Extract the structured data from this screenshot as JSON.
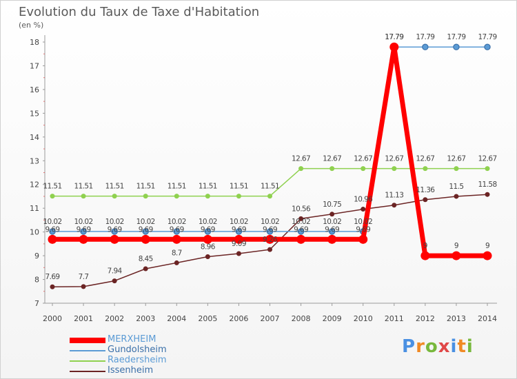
{
  "chart_data": {
    "type": "line",
    "title": "Evolution du Taux de Taxe d'Habitation",
    "unit_label": "(en %)",
    "x": [
      "2000",
      "2001",
      "2002",
      "2003",
      "2004",
      "2005",
      "2006",
      "2007",
      "2008",
      "2009",
      "2010",
      "2011",
      "2012",
      "2013",
      "2014"
    ],
    "y_ticks": [
      "7",
      "8",
      "9",
      "10",
      "11",
      "12",
      "13",
      "14",
      "15",
      "16",
      "17",
      "18"
    ],
    "ylim": [
      7,
      18
    ],
    "grid": false,
    "legend_position": "bottom-left",
    "series": [
      {
        "name": "MERXHEIM",
        "color": "#ff0000",
        "values": [
          9.69,
          9.69,
          9.69,
          9.69,
          9.69,
          9.69,
          9.69,
          9.69,
          9.69,
          9.69,
          9.69,
          17.79,
          9,
          9,
          9
        ],
        "labels": [
          "9.69",
          "9.69",
          "9.69",
          "9.69",
          "9.69",
          "9.69",
          "9.69",
          "9.69",
          "9.69",
          "9.69",
          "9.69",
          "17.79",
          "9",
          "9",
          "9"
        ]
      },
      {
        "name": "Gundolsheim",
        "color": "#5b9bd5",
        "values": [
          10.02,
          10.02,
          10.02,
          10.02,
          10.02,
          10.02,
          10.02,
          10.02,
          10.02,
          10.02,
          10.02,
          17.79,
          17.79,
          17.79,
          17.79
        ],
        "labels": [
          "10.02",
          "10.02",
          "10.02",
          "10.02",
          "10.02",
          "10.02",
          "10.02",
          "10.02",
          "10.02",
          "10.02",
          "10.02",
          "17.79",
          "17.79",
          "17.79",
          "17.79"
        ]
      },
      {
        "name": "Raedersheim",
        "color": "#8fd14f",
        "values": [
          11.51,
          11.51,
          11.51,
          11.51,
          11.51,
          11.51,
          11.51,
          11.51,
          12.67,
          12.67,
          12.67,
          12.67,
          12.67,
          12.67,
          12.67
        ],
        "labels": [
          "11.51",
          "11.51",
          "11.51",
          "11.51",
          "11.51",
          "11.51",
          "11.51",
          "11.51",
          "12.67",
          "12.67",
          "12.67",
          "12.67",
          "12.67",
          "12.67",
          "12.67"
        ]
      },
      {
        "name": "Issenheim",
        "color": "#6b2424",
        "values": [
          7.69,
          7.7,
          7.94,
          8.45,
          8.7,
          8.96,
          9.09,
          9.26,
          10.56,
          10.75,
          10.96,
          11.13,
          11.36,
          11.5,
          11.58
        ],
        "labels": [
          "7.69",
          "7.7",
          "7.94",
          "8.45",
          "8.7",
          "8.96",
          "9.09",
          "9.26",
          "10.56",
          "10.75",
          "10.96",
          "11.13",
          "11.36",
          "11.5",
          "11.58"
        ]
      }
    ]
  },
  "logo": {
    "text": "Proxiti"
  }
}
